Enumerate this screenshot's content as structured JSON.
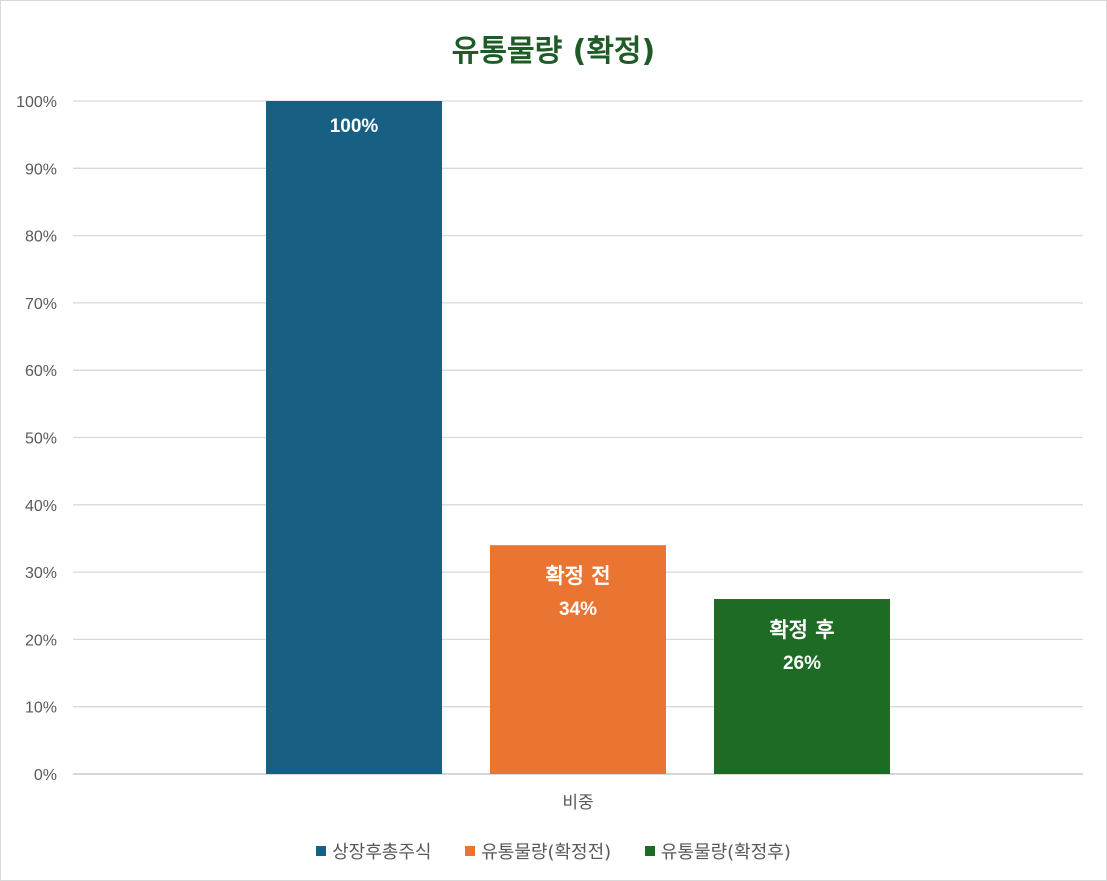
{
  "chart_data": {
    "type": "bar",
    "title": "유통물량 (확정)",
    "categories": [
      "비중"
    ],
    "series": [
      {
        "name": "상장후총주식",
        "values": [
          100
        ],
        "color": "#176084",
        "label_name": "",
        "label_value": "100%"
      },
      {
        "name": "유통물량(확정전)",
        "values": [
          34
        ],
        "color": "#ea7533",
        "label_name": "확정 전",
        "label_value": "34%"
      },
      {
        "name": "유통물량(확정후)",
        "values": [
          26
        ],
        "color": "#1e6b25",
        "label_name": "확정 후",
        "label_value": "26%"
      }
    ],
    "ylim": [
      0,
      100
    ],
    "yticks": [
      "0%",
      "10%",
      "20%",
      "30%",
      "40%",
      "50%",
      "60%",
      "70%",
      "80%",
      "90%",
      "100%"
    ],
    "grid": true,
    "legend_position": "bottom"
  }
}
